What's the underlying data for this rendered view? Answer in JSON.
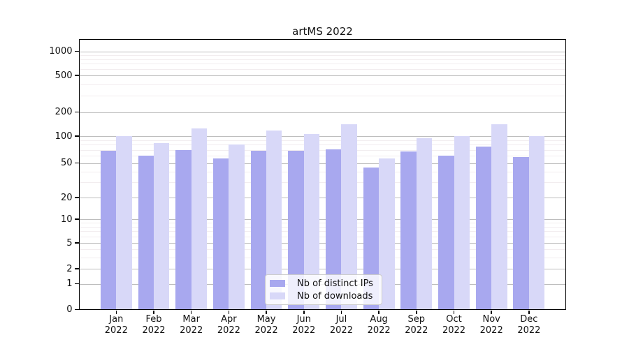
{
  "chart_data": {
    "type": "bar",
    "title": "artMS 2022",
    "scale": "symlog",
    "grid": true,
    "xlabel": "",
    "ylabel": "",
    "year": "2022",
    "categories": [
      "Jan",
      "Feb",
      "Mar",
      "Apr",
      "May",
      "Jun",
      "Jul",
      "Aug",
      "Sep",
      "Oct",
      "Nov",
      "Dec"
    ],
    "yticks": [
      0,
      1,
      2,
      5,
      10,
      20,
      50,
      100,
      200,
      500,
      1000
    ],
    "ylim": [
      0,
      1000
    ],
    "legend_position": "lower center",
    "series": [
      {
        "name": "Nb of distinct IPs",
        "color": "#a8a8ef",
        "values": [
          68,
          60,
          70,
          56,
          68,
          68,
          71,
          44,
          67,
          60,
          76,
          58
        ]
      },
      {
        "name": "Nb of downloads",
        "color": "#d8d8f8",
        "values": [
          100,
          84,
          125,
          80,
          118,
          106,
          140,
          56,
          95,
          101,
          140,
          100
        ]
      }
    ],
    "colors": {
      "major_grid": "#bdbdbd",
      "minor_grid": "#f2edef",
      "axis": "#000000",
      "background": "#ffffff"
    }
  }
}
